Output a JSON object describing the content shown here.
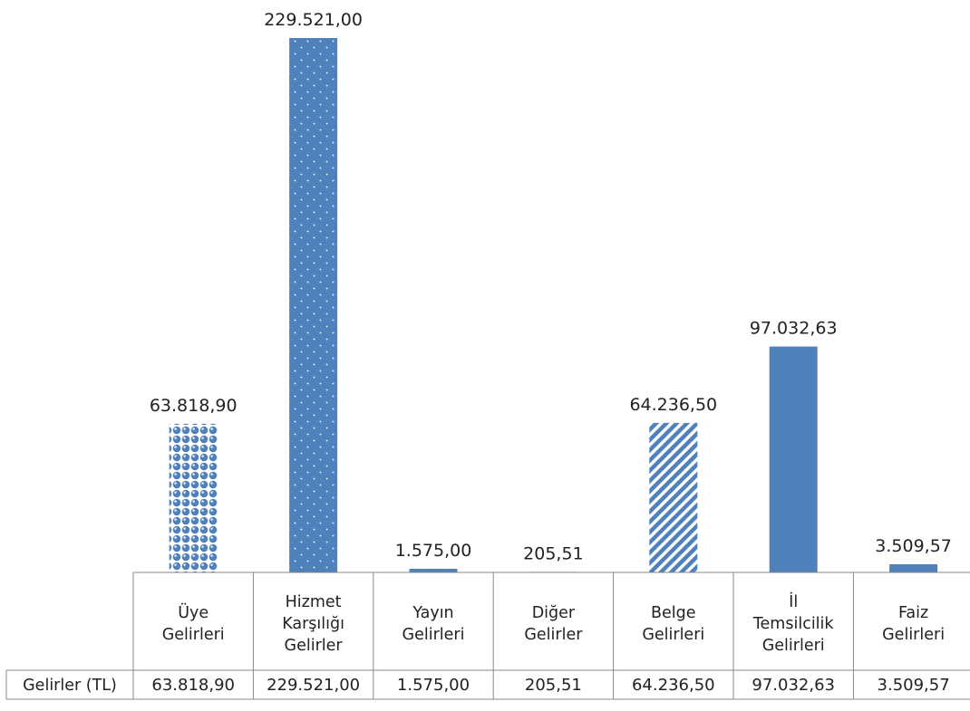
{
  "chart_data": {
    "type": "bar",
    "categories": [
      [
        "Üye",
        "Gelirleri"
      ],
      [
        "Hizmet",
        "Karşılığı",
        "Gelirler"
      ],
      [
        "Yayın",
        "Gelirleri"
      ],
      [
        "Diğer",
        "Gelirler"
      ],
      [
        "Belge",
        "Gelirleri"
      ],
      [
        "İl",
        "Temsilcilik",
        "Gelirleri"
      ],
      [
        "Faiz",
        "Gelirleri"
      ]
    ],
    "series": [
      {
        "name": "Gelirler (TL)",
        "values": [
          63818.9,
          229521.0,
          1575.0,
          205.51,
          64236.5,
          97032.63,
          3509.57
        ],
        "labels": [
          "63.818,90",
          "229.521,00",
          "1.575,00",
          "205,51",
          "64.236,50",
          "97.032,63",
          "3.509,57"
        ]
      }
    ],
    "patterns": [
      "bubbles",
      "dots",
      "small-dots",
      "dots",
      "diagonal-stripes",
      "solid",
      "solid"
    ],
    "colors": {
      "bar": "#4f81bd",
      "grid": "#888888"
    },
    "ylim": [
      0,
      229521
    ],
    "data_table": true
  }
}
